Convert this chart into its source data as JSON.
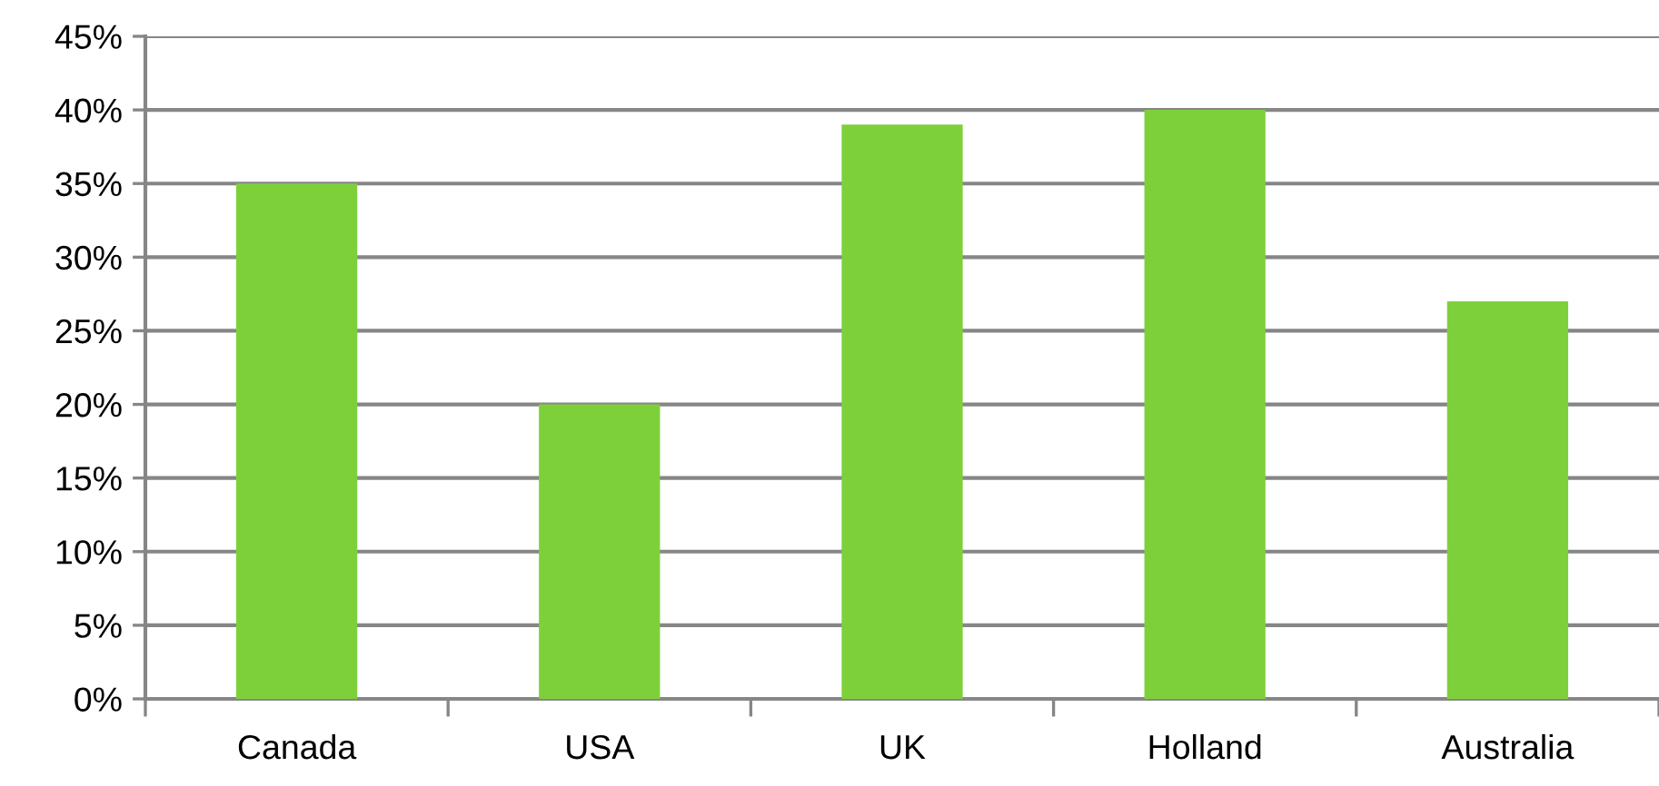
{
  "chart_data": {
    "type": "bar",
    "categories": [
      "Canada",
      "USA",
      "UK",
      "Holland",
      "Australia"
    ],
    "values": [
      35,
      20,
      39,
      40,
      27
    ],
    "color": "#7ed03b",
    "ylim": [
      0,
      45
    ],
    "yticks": [
      {
        "value": 0,
        "label": "0%"
      },
      {
        "value": 5,
        "label": "5%"
      },
      {
        "value": 10,
        "label": "10%"
      },
      {
        "value": 15,
        "label": "15%"
      },
      {
        "value": 20,
        "label": "20%"
      },
      {
        "value": 25,
        "label": "25%"
      },
      {
        "value": 30,
        "label": "30%"
      },
      {
        "value": 35,
        "label": "35%"
      },
      {
        "value": 40,
        "label": "40%"
      },
      {
        "value": 45,
        "label": "45%"
      }
    ],
    "grid": "y"
  }
}
